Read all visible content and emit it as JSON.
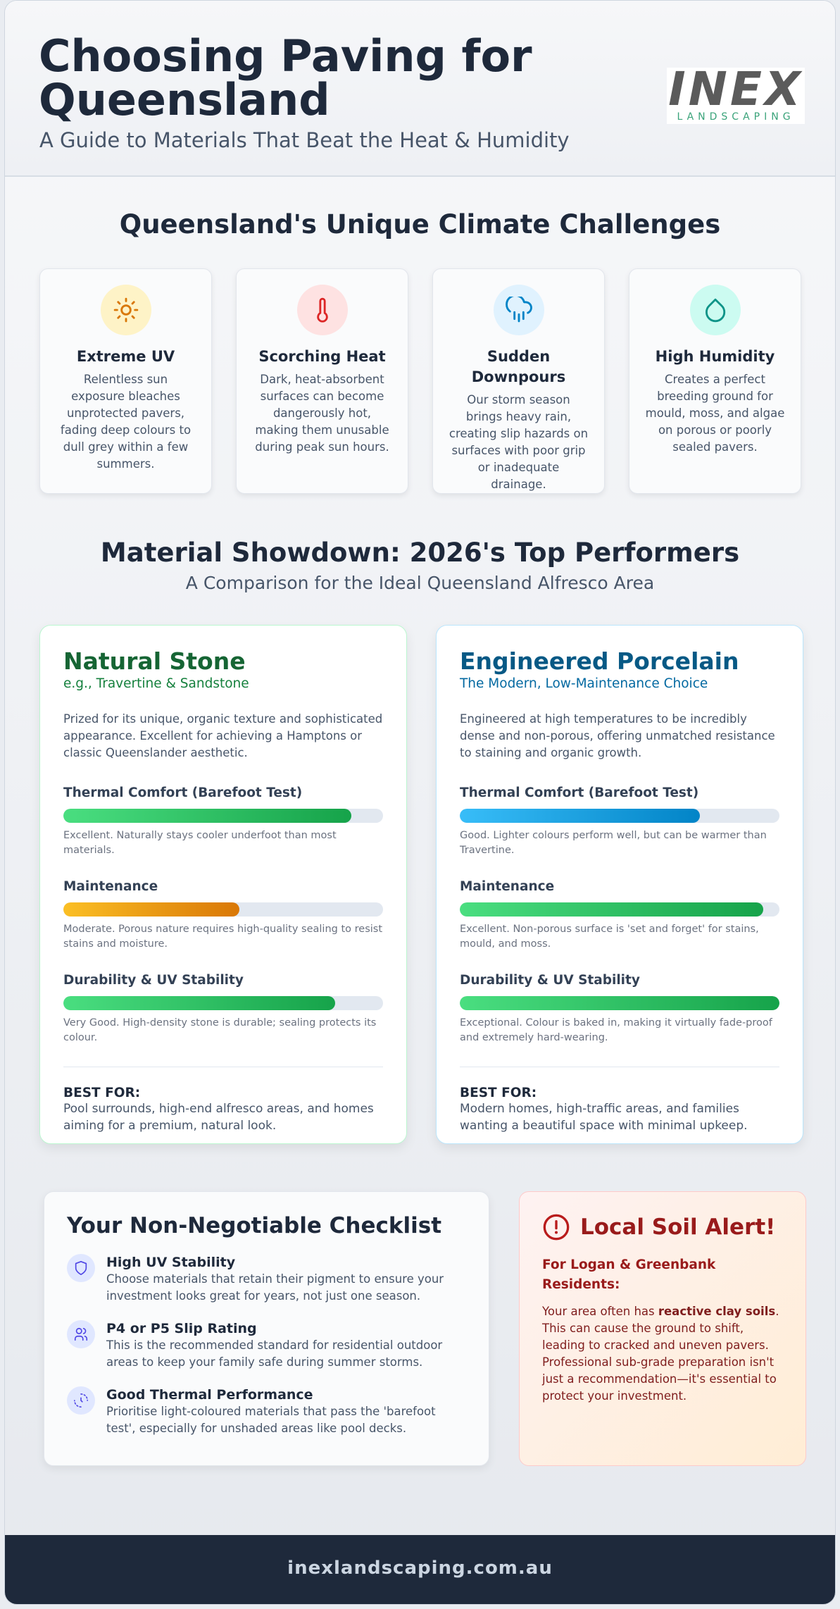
{
  "header": {
    "title": "Choosing Paving for Queensland",
    "subtitle": "A Guide to Materials That Beat the Heat & Humidity",
    "logo": {
      "wordmark": "INEX",
      "tagline": "LANDSCAPING"
    }
  },
  "climate": {
    "heading": "Queensland's Unique Climate Challenges",
    "cards": [
      {
        "title": "Extreme UV",
        "text": "Relentless sun exposure bleaches unprotected pavers, fading deep colours to dull grey within a few summers."
      },
      {
        "title": "Scorching Heat",
        "text": "Dark, heat-absorbent surfaces can become dangerously hot, making them unusable during peak sun hours."
      },
      {
        "title": "Sudden Downpours",
        "text": "Our storm season brings heavy rain, creating slip hazards on surfaces with poor grip or inadequate drainage."
      },
      {
        "title": "High Humidity",
        "text": "Creates a perfect breeding ground for mould, moss, and algae on porous or poorly sealed pavers."
      }
    ]
  },
  "showdown": {
    "heading": "Material Showdown: 2026's Top Performers",
    "subheading": "A Comparison for the Ideal Queensland Alfresco Area",
    "materials": [
      {
        "name": "Natural Stone",
        "tagline": "e.g., Travertine & Sandstone",
        "color": "#166534",
        "tagline_color": "#15803d",
        "border": "#bbf7d0",
        "description": "Prized for its unique, organic texture and sophisticated appearance. Excellent for achieving a Hamptons or classic Queenslander aesthetic.",
        "ratings": [
          {
            "label": "Thermal Comfort (Barefoot Test)",
            "level": 90,
            "colors": [
              "#4ade80",
              "#16a34a"
            ],
            "note": "Excellent. Naturally stays cooler underfoot than most materials."
          },
          {
            "label": "Maintenance",
            "level": 55,
            "colors": [
              "#fbbf24",
              "#d97706"
            ],
            "note": "Moderate. Porous nature requires high-quality sealing to resist stains and moisture."
          },
          {
            "label": "Durability & UV Stability",
            "level": 85,
            "colors": [
              "#4ade80",
              "#16a34a"
            ],
            "note": "Very Good. High-density stone is durable; sealing protects its colour."
          }
        ],
        "best_for_label": "BEST FOR:",
        "best_for": "Pool surrounds, high-end alfresco areas, and homes aiming for a premium, natural look."
      },
      {
        "name": "Engineered Porcelain",
        "tagline": "The Modern, Low-Maintenance Choice",
        "color": "#075985",
        "tagline_color": "#0369a1",
        "border": "#bae6fd",
        "description": "Engineered at high temperatures to be incredibly dense and non-porous, offering unmatched resistance to staining and organic growth.",
        "ratings": [
          {
            "label": "Thermal Comfort (Barefoot Test)",
            "level": 75,
            "colors": [
              "#38bdf8",
              "#0284c7"
            ],
            "note": "Good. Lighter colours perform well, but can be warmer than Travertine."
          },
          {
            "label": "Maintenance",
            "level": 95,
            "colors": [
              "#4ade80",
              "#16a34a"
            ],
            "note": "Excellent. Non-porous surface is 'set and forget' for stains, mould, and moss."
          },
          {
            "label": "Durability & UV Stability",
            "level": 100,
            "colors": [
              "#4ade80",
              "#16a34a"
            ],
            "note": "Exceptional. Colour is baked in, making it virtually fade-proof and extremely hard-wearing."
          }
        ],
        "best_for_label": "BEST FOR:",
        "best_for": "Modern homes, high-traffic areas, and families wanting a beautiful space with minimal upkeep."
      }
    ]
  },
  "checklist": {
    "heading": "Your Non-Negotiable Checklist",
    "items": [
      {
        "title": "High UV Stability",
        "text": "Choose materials that retain their pigment to ensure your investment looks great for years, not just one season."
      },
      {
        "title": "P4 or P5 Slip Rating",
        "text": "This is the recommended standard for residential outdoor areas to keep your family safe during summer storms."
      },
      {
        "title": "Good Thermal Performance",
        "text": "Prioritise light-coloured materials that pass the 'barefoot test', especially for unshaded areas like pool decks."
      }
    ]
  },
  "alert": {
    "heading": "Local Soil Alert!",
    "subheading": "For Logan & Greenbank Residents:",
    "body_before": "Your area often has ",
    "body_bold": "reactive clay soils",
    "body_after": ". This can cause the ground to shift, leading to cracked and uneven pavers. Professional sub-grade preparation isn't just a recommendation—it's essential to protect your investment."
  },
  "footer": {
    "url": "inexlandscaping.com.au"
  }
}
